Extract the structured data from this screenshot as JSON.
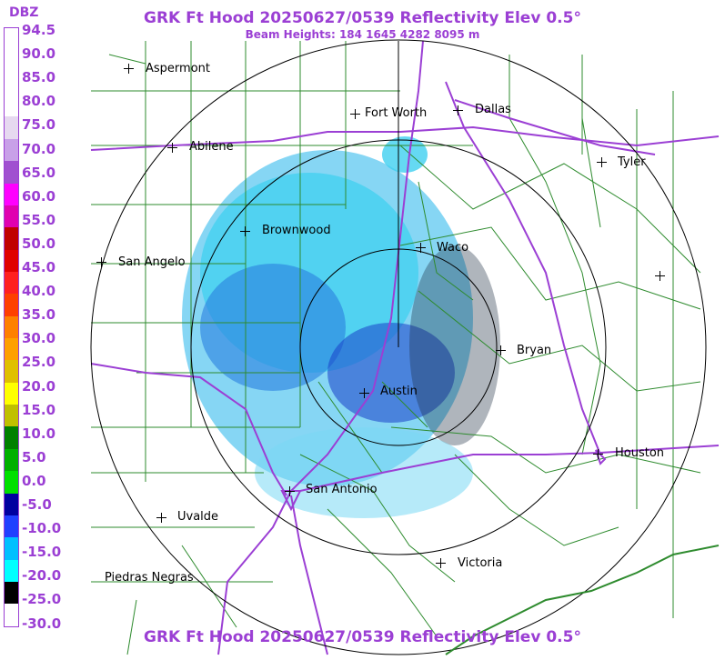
{
  "header": {
    "title": "GRK Ft Hood 20250627/0539 Reflectivity Elev 0.5°",
    "beam_heights": "Beam Heights: 184 1645 4282 8095 m"
  },
  "footer": {
    "title": "GRK Ft Hood 20250627/0539 Reflectivity Elev 0.5°"
  },
  "legend": {
    "unit": "DBZ",
    "ticks": [
      "94.5",
      "90.0",
      "85.0",
      "80.0",
      "75.0",
      "70.0",
      "65.0",
      "60.0",
      "55.0",
      "50.0",
      "45.0",
      "40.0",
      "35.0",
      "30.0",
      "25.0",
      "20.0",
      "15.0",
      "10.0",
      "5.0",
      "0.0",
      "-5.0",
      "-10.0",
      "-15.0",
      "-20.0",
      "-25.0",
      "-30.0"
    ],
    "colors": [
      "#ffffff",
      "#ffffff",
      "#ffffff",
      "#ffffff",
      "#e6d9f0",
      "#c8a0e8",
      "#a050d0",
      "#ff00ff",
      "#e000b0",
      "#c00000",
      "#e00000",
      "#ff2020",
      "#ff4000",
      "#ff8000",
      "#ffa000",
      "#e0c000",
      "#ffff00",
      "#c0c000",
      "#008000",
      "#00b000",
      "#00e000",
      "#0000a0",
      "#2040ff",
      "#00c0ff",
      "#00ffff",
      "#000000",
      "#ffffff"
    ],
    "series_colors_note": ""
  },
  "cities": [
    {
      "name": "Aspermont",
      "cross": true
    },
    {
      "name": "Fort Worth",
      "cross": true
    },
    {
      "name": "Dallas",
      "cross": true
    },
    {
      "name": "Abilene",
      "cross": true
    },
    {
      "name": "Tyler",
      "cross": true
    },
    {
      "name": "Brownwood",
      "cross": true
    },
    {
      "name": "Waco",
      "cross": true
    },
    {
      "name": "San Angelo",
      "cross": true
    },
    {
      "name": "Bryan",
      "cross": true
    },
    {
      "name": "Austin",
      "cross": true
    },
    {
      "name": "Houston",
      "cross": true
    },
    {
      "name": "San Antonio",
      "cross": true
    },
    {
      "name": "Uvalde",
      "cross": true
    },
    {
      "name": "Victoria",
      "cross": true
    },
    {
      "name": "Piedras Negras",
      "cross": false
    }
  ],
  "colors": {
    "title": "#9b3fd4",
    "county_lines": "#2e8b2e",
    "highways": "#9b3fd4",
    "range_rings": "#000000",
    "echo_light": "#3fd0f0",
    "echo_mid": "#2a7fe0",
    "echo_dark": "#1a3fc8"
  },
  "radar": {
    "site": "GRK Ft Hood",
    "date_time": "20250627/0539",
    "product": "Reflectivity",
    "elevation": "0.5°",
    "range_rings_count": 4
  }
}
